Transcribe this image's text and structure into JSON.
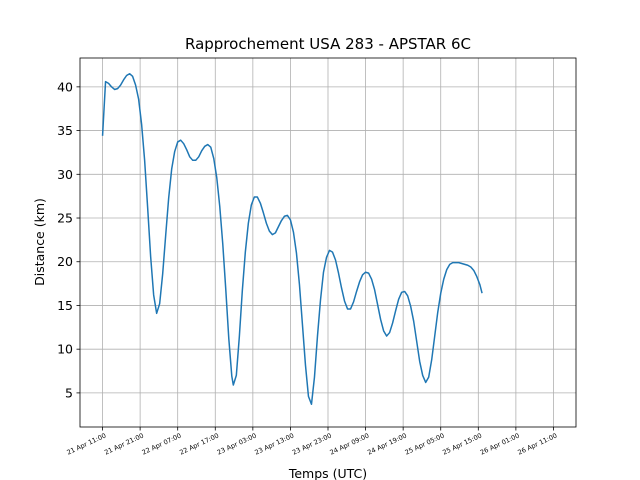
{
  "chart_data": {
    "type": "line",
    "title": "Rapprochement USA 283 - APSTAR 6C",
    "xlabel": "Temps (UTC)",
    "ylabel": "Distance (km)",
    "x_unit": "hours",
    "x_ticks": [
      {
        "label": "21 Apr 11:00",
        "hour": 0
      },
      {
        "label": "21 Apr 21:00",
        "hour": 10
      },
      {
        "label": "22 Apr 07:00",
        "hour": 20
      },
      {
        "label": "22 Apr 17:00",
        "hour": 30
      },
      {
        "label": "23 Apr 03:00",
        "hour": 40
      },
      {
        "label": "23 Apr 13:00",
        "hour": 50
      },
      {
        "label": "23 Apr 23:00",
        "hour": 60
      },
      {
        "label": "24 Apr 09:00",
        "hour": 70
      },
      {
        "label": "24 Apr 19:00",
        "hour": 80
      },
      {
        "label": "25 Apr 05:00",
        "hour": 90
      },
      {
        "label": "25 Apr 15:00",
        "hour": 100
      },
      {
        "label": "26 Apr 01:00",
        "hour": 110
      },
      {
        "label": "26 Apr 11:00",
        "hour": 120
      }
    ],
    "y_ticks": [
      5,
      10,
      15,
      20,
      25,
      30,
      35,
      40
    ],
    "xlim": [
      -6,
      126
    ],
    "ylim": [
      1.1,
      43.3
    ],
    "grid": true,
    "series": [
      {
        "color": "#1f77b4",
        "points": [
          [
            0,
            34.4
          ],
          [
            0.8,
            40.6
          ],
          [
            1.6,
            40.4
          ],
          [
            2.4,
            40.0
          ],
          [
            3.2,
            39.7
          ],
          [
            4.0,
            39.8
          ],
          [
            4.8,
            40.2
          ],
          [
            5.6,
            40.8
          ],
          [
            6.4,
            41.3
          ],
          [
            7.2,
            41.5
          ],
          [
            8.0,
            41.2
          ],
          [
            8.8,
            40.2
          ],
          [
            9.6,
            38.6
          ],
          [
            10.4,
            35.7
          ],
          [
            11.2,
            31.6
          ],
          [
            12.0,
            26.2
          ],
          [
            12.8,
            20.6
          ],
          [
            13.6,
            16.2
          ],
          [
            14.4,
            14.1
          ],
          [
            15.2,
            15.2
          ],
          [
            16.0,
            18.6
          ],
          [
            16.8,
            23.0
          ],
          [
            17.6,
            27.3
          ],
          [
            18.4,
            30.6
          ],
          [
            19.2,
            32.6
          ],
          [
            20.0,
            33.7
          ],
          [
            20.8,
            33.9
          ],
          [
            21.6,
            33.5
          ],
          [
            22.4,
            32.8
          ],
          [
            23.2,
            32.0
          ],
          [
            24.0,
            31.6
          ],
          [
            24.8,
            31.6
          ],
          [
            25.6,
            32.0
          ],
          [
            26.4,
            32.7
          ],
          [
            27.2,
            33.2
          ],
          [
            28.0,
            33.4
          ],
          [
            28.8,
            33.1
          ],
          [
            29.6,
            31.8
          ],
          [
            30.4,
            29.6
          ],
          [
            31.2,
            26.3
          ],
          [
            32.0,
            22.0
          ],
          [
            32.8,
            16.8
          ],
          [
            33.6,
            11.2
          ],
          [
            34.4,
            6.9
          ],
          [
            34.8,
            5.9
          ],
          [
            35.6,
            7.0
          ],
          [
            36.4,
            11.4
          ],
          [
            37.2,
            16.7
          ],
          [
            38.0,
            21.1
          ],
          [
            38.8,
            24.4
          ],
          [
            39.6,
            26.5
          ],
          [
            40.4,
            27.4
          ],
          [
            41.2,
            27.4
          ],
          [
            42.0,
            26.7
          ],
          [
            42.8,
            25.6
          ],
          [
            43.6,
            24.4
          ],
          [
            44.4,
            23.5
          ],
          [
            45.2,
            23.1
          ],
          [
            46.0,
            23.3
          ],
          [
            46.8,
            24.0
          ],
          [
            47.6,
            24.7
          ],
          [
            48.4,
            25.2
          ],
          [
            49.2,
            25.3
          ],
          [
            50.0,
            24.8
          ],
          [
            50.8,
            23.4
          ],
          [
            51.6,
            21.0
          ],
          [
            52.4,
            17.4
          ],
          [
            53.2,
            12.8
          ],
          [
            54.0,
            8.2
          ],
          [
            54.8,
            4.6
          ],
          [
            55.6,
            3.7
          ],
          [
            56.4,
            6.8
          ],
          [
            57.2,
            11.5
          ],
          [
            58.0,
            15.6
          ],
          [
            58.8,
            18.8
          ],
          [
            59.6,
            20.5
          ],
          [
            60.4,
            21.3
          ],
          [
            61.2,
            21.1
          ],
          [
            62.0,
            20.2
          ],
          [
            62.8,
            18.7
          ],
          [
            63.6,
            17.0
          ],
          [
            64.4,
            15.5
          ],
          [
            65.2,
            14.6
          ],
          [
            66.0,
            14.6
          ],
          [
            66.8,
            15.4
          ],
          [
            67.6,
            16.6
          ],
          [
            68.4,
            17.7
          ],
          [
            69.2,
            18.5
          ],
          [
            70.0,
            18.8
          ],
          [
            70.8,
            18.7
          ],
          [
            71.6,
            18.0
          ],
          [
            72.4,
            16.8
          ],
          [
            73.2,
            15.1
          ],
          [
            74.0,
            13.4
          ],
          [
            74.8,
            12.1
          ],
          [
            75.6,
            11.5
          ],
          [
            76.4,
            11.9
          ],
          [
            77.2,
            13.0
          ],
          [
            78.0,
            14.4
          ],
          [
            78.8,
            15.7
          ],
          [
            79.6,
            16.5
          ],
          [
            80.4,
            16.6
          ],
          [
            81.2,
            16.1
          ],
          [
            82.0,
            14.9
          ],
          [
            82.8,
            13.2
          ],
          [
            83.6,
            10.9
          ],
          [
            84.4,
            8.6
          ],
          [
            85.2,
            7.0
          ],
          [
            86.0,
            6.2
          ],
          [
            86.8,
            6.8
          ],
          [
            87.6,
            8.8
          ],
          [
            88.4,
            11.5
          ],
          [
            89.2,
            14.2
          ],
          [
            90.0,
            16.4
          ],
          [
            90.8,
            18.0
          ],
          [
            91.6,
            19.1
          ],
          [
            92.4,
            19.7
          ],
          [
            93.2,
            19.9
          ],
          [
            94.0,
            19.9
          ],
          [
            94.8,
            19.9
          ],
          [
            95.6,
            19.8
          ],
          [
            96.4,
            19.7
          ],
          [
            97.2,
            19.6
          ],
          [
            98.0,
            19.4
          ],
          [
            98.8,
            19.0
          ],
          [
            99.6,
            18.3
          ],
          [
            100.4,
            17.4
          ],
          [
            101.0,
            16.4
          ]
        ]
      }
    ]
  }
}
